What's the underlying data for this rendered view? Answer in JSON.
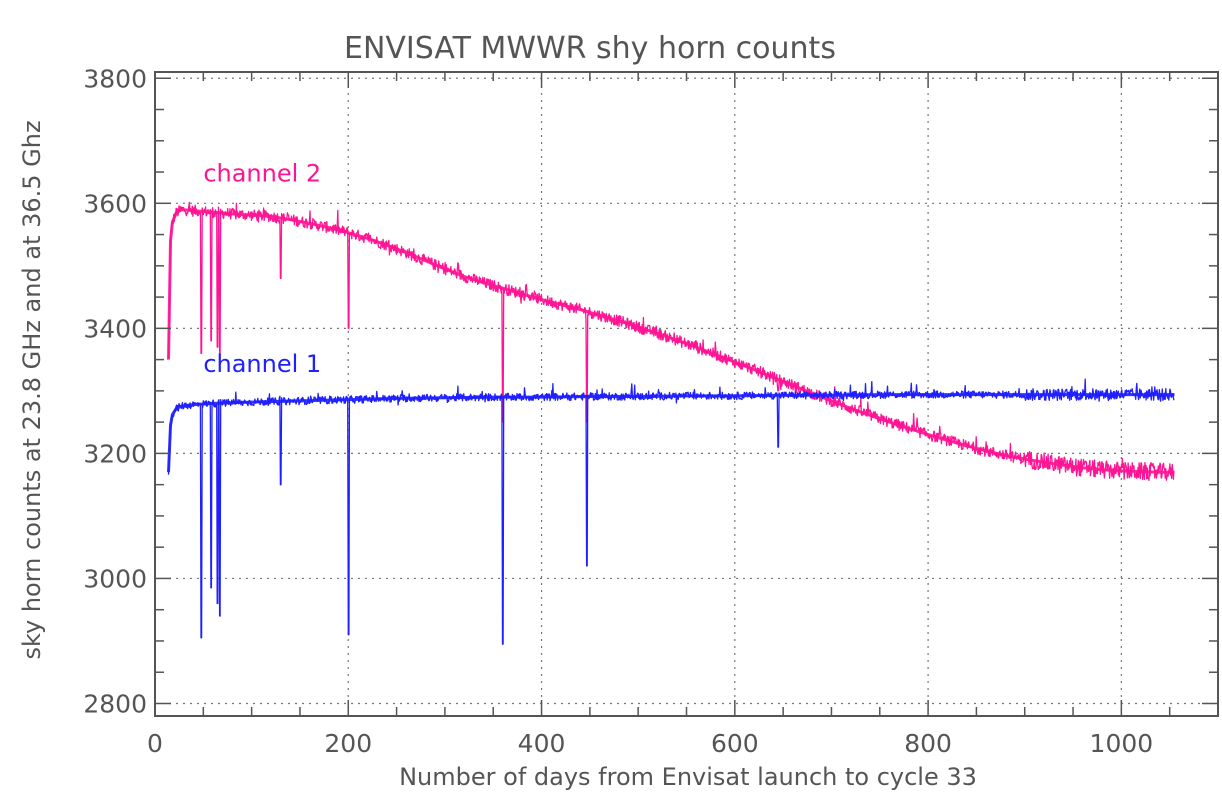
{
  "chart_data": {
    "type": "line",
    "title": "ENVISAT   MWWR    shy horn counts",
    "xlabel": "Number of days from Envisat launch to cycle 33",
    "ylabel": "sky horn counts at 23.8 GHz and at 36.5 Ghz",
    "xlim": [
      0,
      1100
    ],
    "ylim": [
      2780,
      3810
    ],
    "xticks": [
      0,
      200,
      400,
      600,
      800,
      1000
    ],
    "yticks": [
      2800,
      3000,
      3200,
      3400,
      3600,
      3800
    ],
    "xtick_labels": [
      "0",
      "200",
      "400",
      "600",
      "800",
      1000
    ],
    "ytick_labels": [
      "2800",
      "3000",
      "3200",
      "3400",
      "3600",
      "3800"
    ],
    "grid": true,
    "series": [
      {
        "name": "channel 2",
        "color": "#ff1493",
        "x": [
          14,
          16,
          18,
          22,
          28,
          40,
          60,
          80,
          100,
          120,
          140,
          160,
          180,
          200,
          220,
          240,
          260,
          280,
          300,
          320,
          340,
          360,
          380,
          400,
          420,
          440,
          460,
          480,
          500,
          520,
          540,
          560,
          580,
          600,
          620,
          640,
          660,
          680,
          700,
          720,
          740,
          760,
          780,
          800,
          820,
          840,
          860,
          880,
          900,
          920,
          940,
          960,
          980,
          1000,
          1020,
          1040,
          1055
        ],
        "y": [
          3350,
          3540,
          3570,
          3585,
          3590,
          3588,
          3586,
          3583,
          3581,
          3579,
          3574,
          3568,
          3561,
          3553,
          3544,
          3533,
          3521,
          3508,
          3495,
          3483,
          3473,
          3464,
          3455,
          3446,
          3438,
          3430,
          3421,
          3412,
          3402,
          3392,
          3381,
          3370,
          3358,
          3346,
          3334,
          3321,
          3309,
          3296,
          3284,
          3272,
          3261,
          3250,
          3240,
          3230,
          3221,
          3212,
          3204,
          3197,
          3191,
          3186,
          3181,
          3177,
          3174,
          3172,
          3171,
          3170,
          3170
        ]
      },
      {
        "name": "channel 1",
        "color": "#1f1fff",
        "x": [
          14,
          16,
          18,
          22,
          28,
          40,
          60,
          80,
          100,
          150,
          200,
          250,
          300,
          350,
          400,
          450,
          500,
          550,
          600,
          650,
          700,
          750,
          800,
          850,
          900,
          950,
          1000,
          1055
        ],
        "y": [
          3170,
          3245,
          3262,
          3272,
          3276,
          3278,
          3280,
          3281,
          3282,
          3284,
          3286,
          3288,
          3289,
          3290,
          3290,
          3291,
          3291,
          3292,
          3292,
          3293,
          3293,
          3294,
          3294,
          3294,
          3294,
          3294,
          3294,
          3294
        ]
      }
    ],
    "dips": [
      {
        "series": "channel 2",
        "x": [
          48,
          58,
          65,
          67,
          130,
          200,
          360,
          447,
          560,
          645
        ],
        "y": [
          3360,
          3380,
          3370,
          3360,
          3480,
          3400,
          3250,
          3250,
          3380,
          3300
        ]
      },
      {
        "series": "channel 1",
        "x": [
          13,
          48,
          58,
          65,
          67,
          130,
          200,
          360,
          447,
          645
        ],
        "y": [
          2910,
          2905,
          2985,
          2960,
          2940,
          3150,
          2910,
          2895,
          3020,
          3210
        ]
      }
    ],
    "annotations": [
      {
        "text": "channel 2",
        "x": 50,
        "y": 3635
      },
      {
        "text": "channel 1",
        "x": 50,
        "y": 3330
      }
    ]
  }
}
